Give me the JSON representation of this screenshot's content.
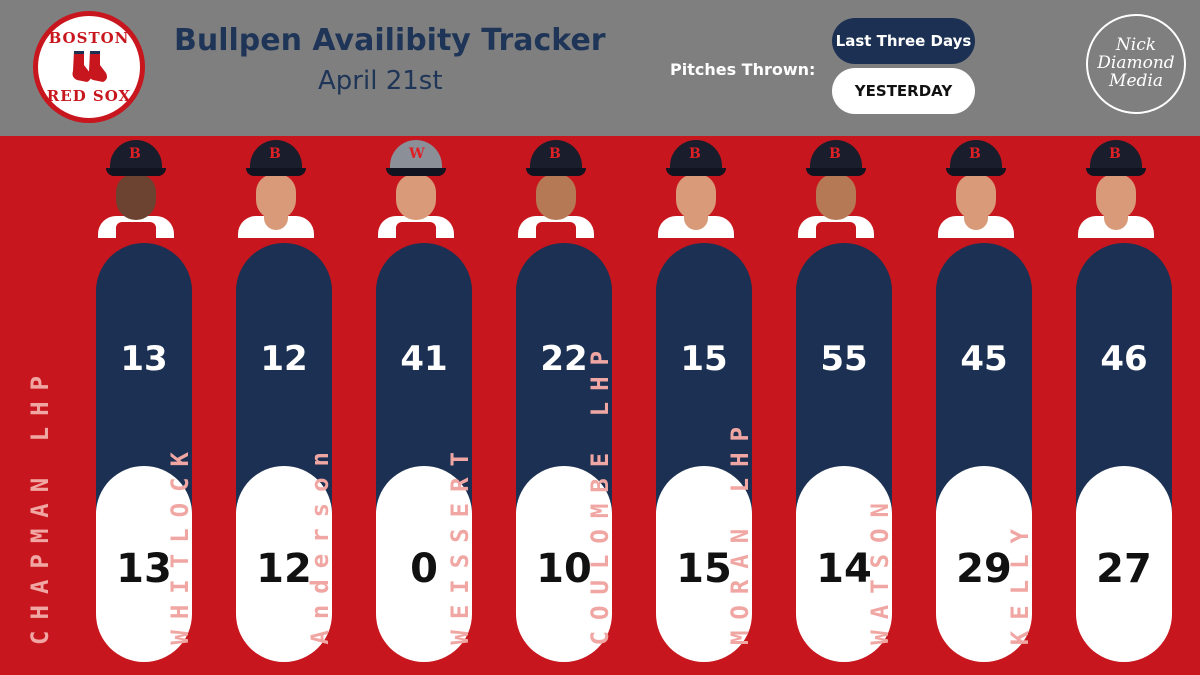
{
  "header": {
    "title": "Bullpen Availibity Tracker",
    "subtitle": "April 21st",
    "pitches_label": "Pitches Thrown:",
    "legend_three_days": "Last Three Days",
    "legend_yesterday": "YESTERDAY",
    "logo_text_top": "BOSTON",
    "logo_text_bottom": "RED SOX",
    "watermark": [
      "Nick",
      "Diamond",
      "Media"
    ]
  },
  "colors": {
    "background": "#c8161e",
    "header": "#7f7f7f",
    "navy": "#1b3052",
    "name_text": "#f0a7a3"
  },
  "players": [
    {
      "name": "CHAPMAN LHP",
      "last_three_days": "13",
      "yesterday": "13",
      "cap": "B"
    },
    {
      "name": "WHITLOCK",
      "last_three_days": "12",
      "yesterday": "12",
      "cap": "B"
    },
    {
      "name": "Anderson",
      "last_three_days": "41",
      "yesterday": "0",
      "cap": "W"
    },
    {
      "name": "WEISSERT",
      "last_three_days": "22",
      "yesterday": "10",
      "cap": "B"
    },
    {
      "name": "COULOMBE LHP",
      "last_three_days": "15",
      "yesterday": "15",
      "cap": "B"
    },
    {
      "name": "MORAN LHP",
      "last_three_days": "55",
      "yesterday": "14",
      "cap": "B"
    },
    {
      "name": "WATSON",
      "last_three_days": "45",
      "yesterday": "29",
      "cap": "B"
    },
    {
      "name": "KELLY",
      "last_three_days": "46",
      "yesterday": "27",
      "cap": "B"
    }
  ]
}
